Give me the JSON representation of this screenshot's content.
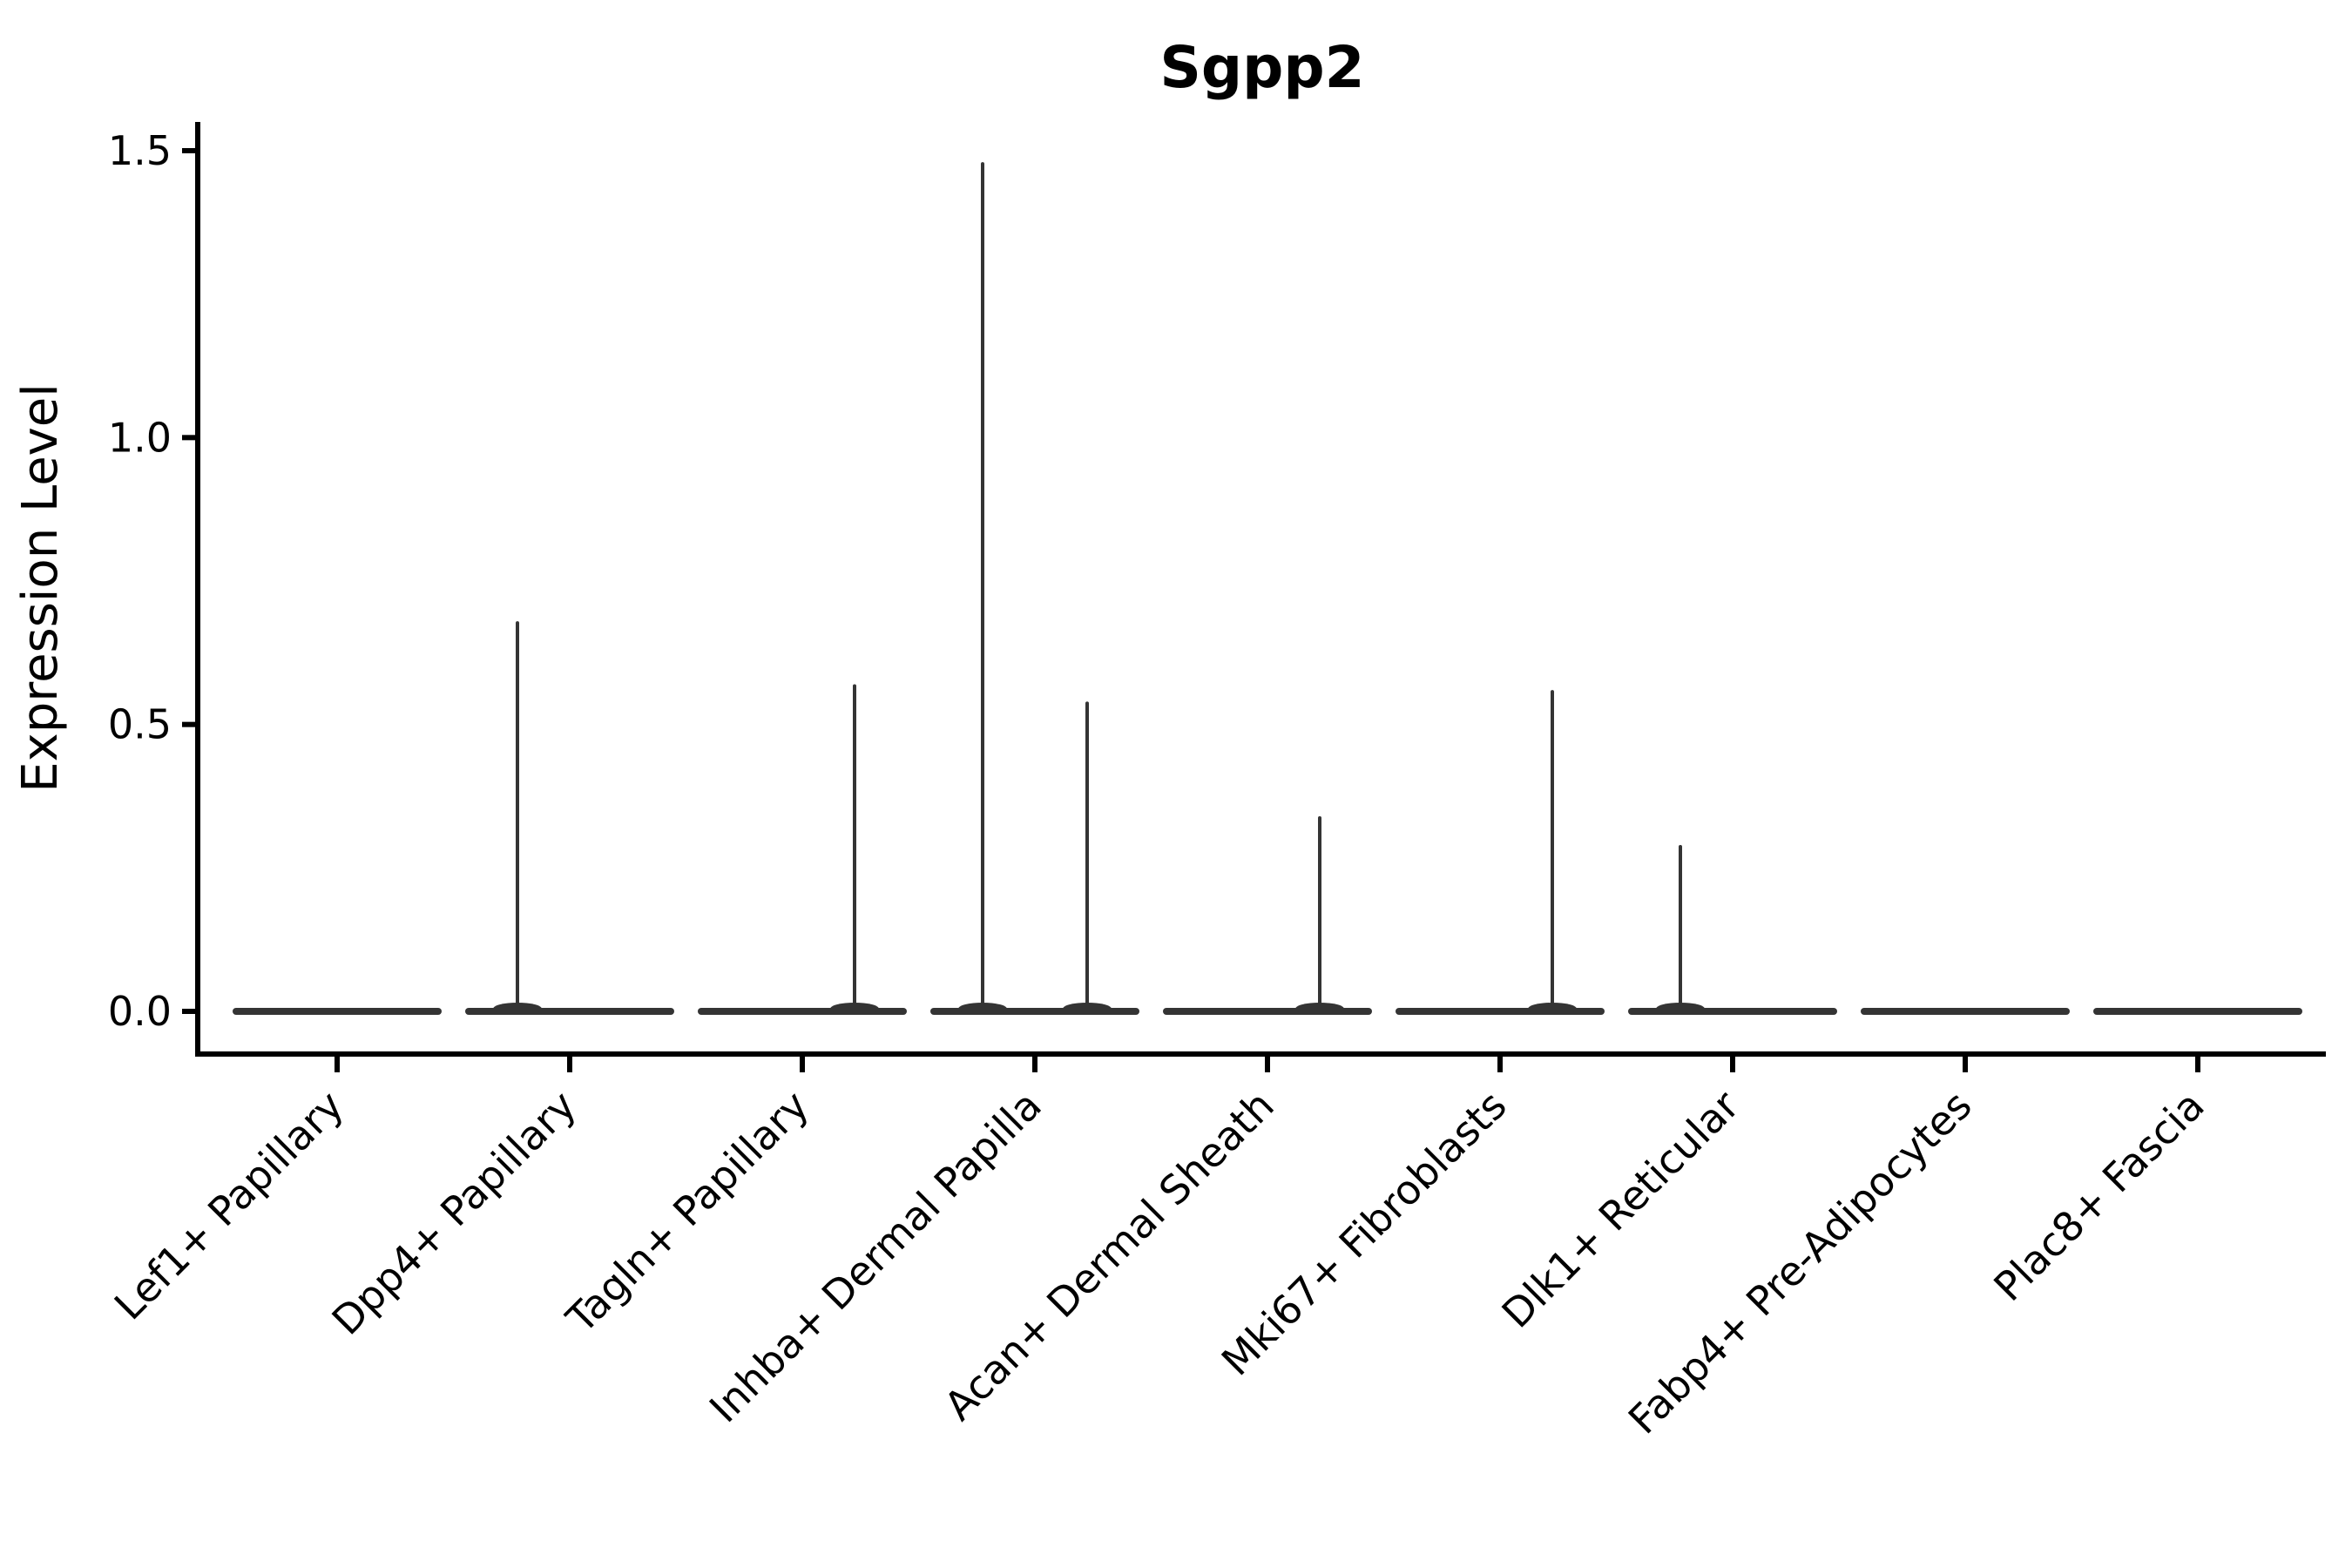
{
  "chart_data": {
    "type": "violin",
    "title": "Sgpp2",
    "ylabel": "Expression Level",
    "xlabel": "",
    "categories": [
      "Lef1+ Papillary",
      "Dpp4+ Papillary",
      "Tagln+ Papillary",
      "Inhba+ Dermal Papilla",
      "Acan+ Dermal Sheath",
      "Mki67+ Fibroblasts",
      "Dlk1+ Reticular",
      "Fabp4+ Pre-Adipocytes",
      "Plac8+ Fascia"
    ],
    "yticks": [
      0.0,
      0.5,
      1.0,
      1.5
    ],
    "ytick_labels": [
      "0.0",
      "0.5",
      "1.0",
      "1.5"
    ],
    "ylim": [
      -0.07,
      1.55
    ],
    "violin_baseline_value": 0,
    "groups_per_category": 2,
    "series": [
      {
        "name": "left-violin",
        "max_values": [
          0,
          0.68,
          0,
          1.48,
          0,
          0,
          0.29,
          0,
          0
        ]
      },
      {
        "name": "right-violin",
        "max_values": [
          0,
          0,
          0.57,
          0.54,
          0.34,
          0.56,
          0,
          0,
          0
        ]
      }
    ],
    "legend": "none",
    "grid": false,
    "colors": {
      "violin_stroke": "#343434",
      "axis": "#000000",
      "text": "#000000",
      "background": "#ffffff"
    }
  }
}
